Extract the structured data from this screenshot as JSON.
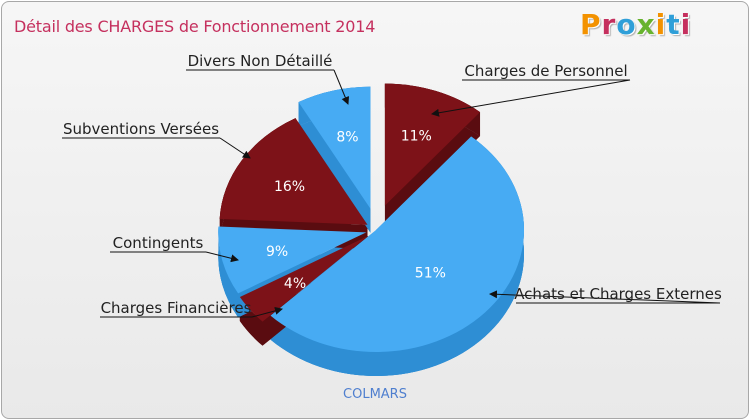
{
  "title": "Détail des CHARGES de Fonctionnement 2014",
  "logo": {
    "text": "Proxiti",
    "letter_colors": [
      "#f39200",
      "#c5305e",
      "#2f9fd8",
      "#67b32e",
      "#f39200",
      "#2f9fd8",
      "#c5305e"
    ]
  },
  "footer": "COLMARS",
  "colors": {
    "blue": "#47abf3",
    "blue_side": "#2e8ed4",
    "maroon": "#7d1218",
    "maroon_side": "#5a0c10"
  },
  "chart_data": {
    "type": "pie",
    "title": "Détail des CHARGES de Fonctionnement 2014",
    "slices": [
      {
        "name": "Charges de Personnel",
        "value": 11,
        "label": "11%",
        "color": "maroon"
      },
      {
        "name": "Achats et Charges Externes",
        "value": 51,
        "label": "51%",
        "color": "blue"
      },
      {
        "name": "Charges Financières",
        "value": 4,
        "label": "4%",
        "color": "maroon"
      },
      {
        "name": "Contingents",
        "value": 9,
        "label": "9%",
        "color": "blue"
      },
      {
        "name": "Subventions Versées",
        "value": 16,
        "label": "16%",
        "color": "maroon"
      },
      {
        "name": "Divers Non Détaillé",
        "value": 8,
        "label": "8%",
        "color": "blue"
      }
    ]
  }
}
